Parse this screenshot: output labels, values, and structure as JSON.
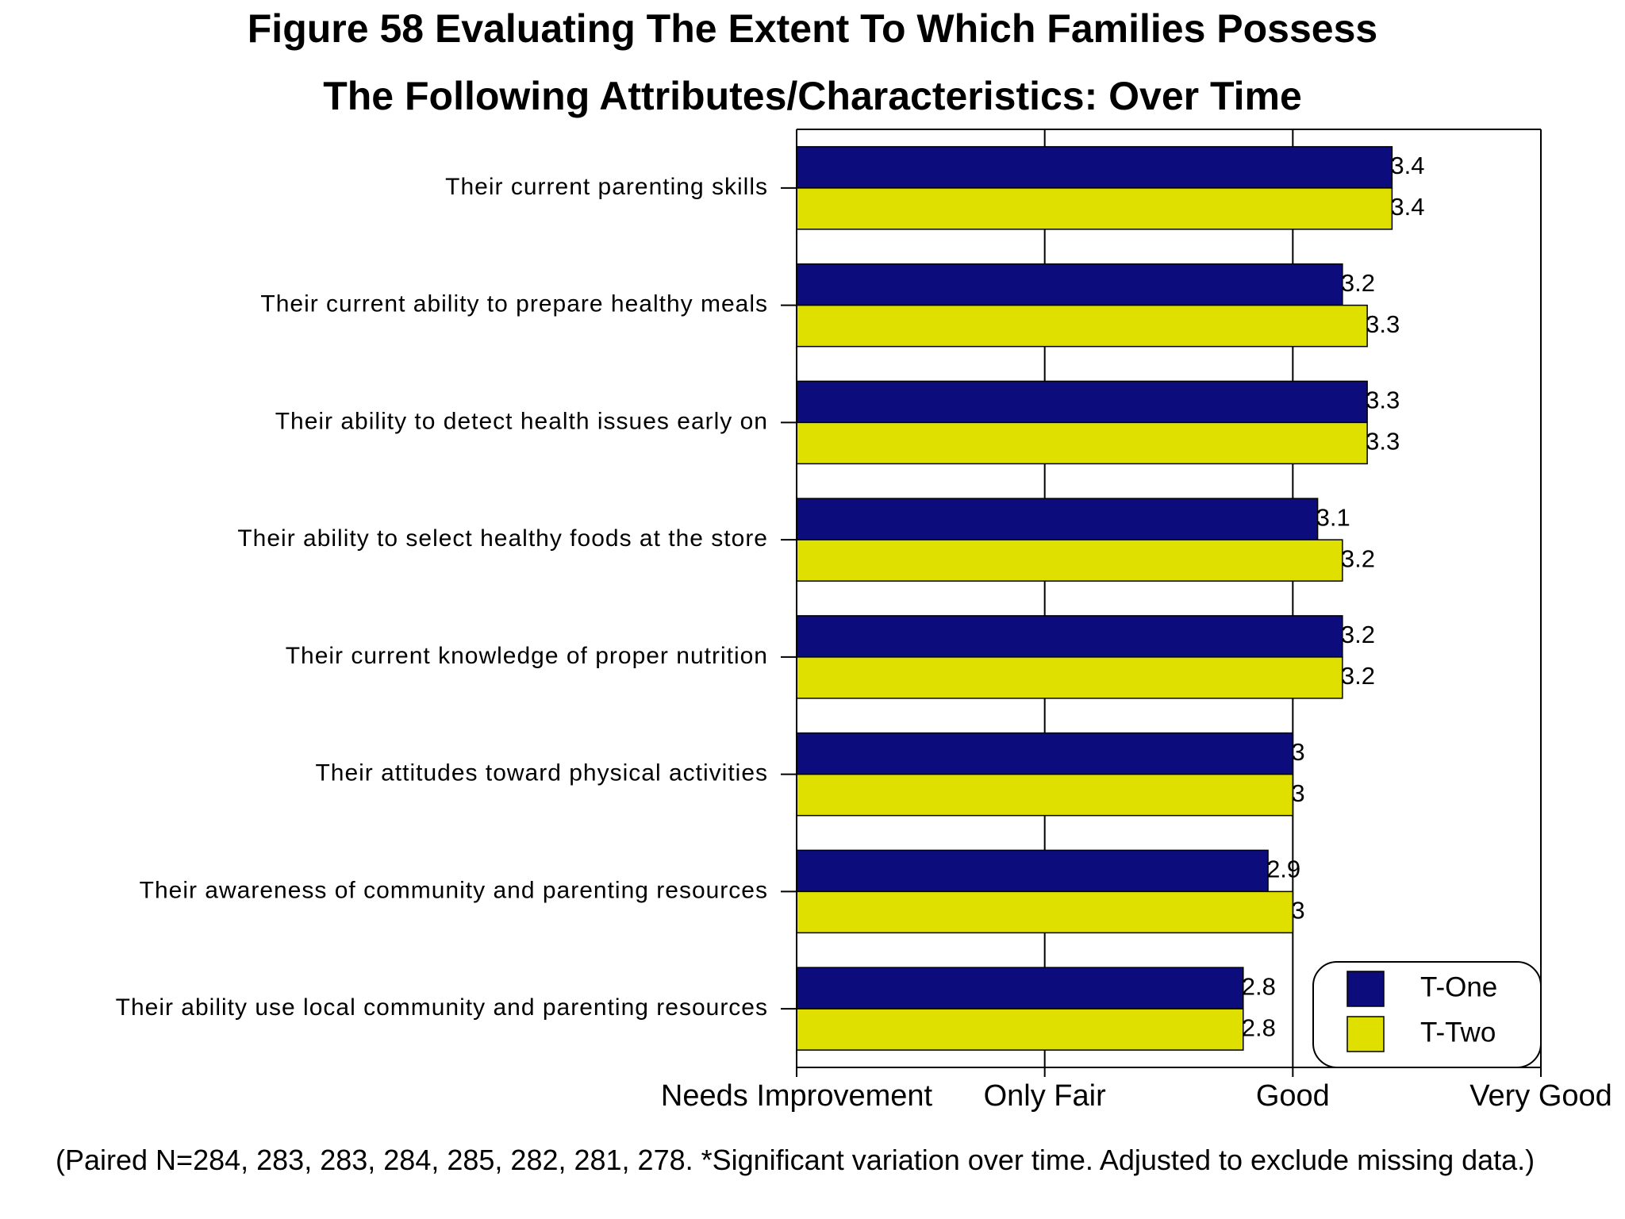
{
  "chart_data": {
    "type": "hbar",
    "title": [
      "Figure 58  Evaluating The Extent To Which Families Possess",
      "The Following Attributes/Characteristics: Over Time"
    ],
    "categories": [
      "Their current parenting skills",
      "Their current ability to prepare healthy meals",
      "Their ability to detect health issues early on",
      "Their ability to select healthy foods at the store",
      "Their current knowledge of proper nutrition",
      "Their attitudes toward physical activities",
      "Their awareness of community and parenting resources",
      "Their ability use local community and parenting resources"
    ],
    "series": [
      {
        "name": "T-One",
        "color": "#0c0c7c",
        "values": [
          3.4,
          3.2,
          3.3,
          3.1,
          3.2,
          3,
          2.9,
          2.8
        ]
      },
      {
        "name": "T-Two",
        "color": "#e0e000",
        "values": [
          3.4,
          3.3,
          3.3,
          3.2,
          3.2,
          3,
          3,
          2.8
        ]
      }
    ],
    "xlim": [
      1,
      4
    ],
    "xticks": [
      {
        "value": 1,
        "label": "Needs Improvement"
      },
      {
        "value": 2,
        "label": "Only Fair"
      },
      {
        "value": 3,
        "label": "Good"
      },
      {
        "value": 4,
        "label": "Very Good"
      }
    ],
    "grid": true,
    "legend": "lower right",
    "note": "(Paired N=284, 283, 283, 284, 285, 282, 281, 278. *Significant variation over time. Adjusted to exclude missing data.)"
  }
}
